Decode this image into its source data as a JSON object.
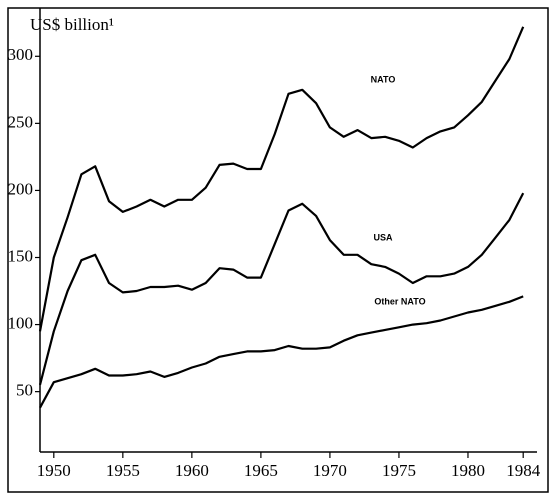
{
  "chart_data": {
    "type": "line",
    "y_label": "US$ billion¹",
    "x": [
      1949,
      1950,
      1951,
      1952,
      1953,
      1954,
      1955,
      1956,
      1957,
      1958,
      1959,
      1960,
      1961,
      1962,
      1963,
      1964,
      1965,
      1966,
      1967,
      1968,
      1969,
      1970,
      1971,
      1972,
      1973,
      1974,
      1975,
      1976,
      1977,
      1978,
      1979,
      1980,
      1981,
      1982,
      1983,
      1984
    ],
    "series": [
      {
        "name": "NATO",
        "color": "#000000",
        "values": [
          95,
          150,
          180,
          212,
          218,
          192,
          184,
          188,
          193,
          188,
          193,
          193,
          202,
          219,
          220,
          216,
          216,
          242,
          272,
          275,
          265,
          247,
          240,
          245,
          239,
          240,
          237,
          232,
          239,
          244,
          247,
          256,
          266,
          282,
          298,
          322
        ]
      },
      {
        "name": "USA",
        "color": "#000000",
        "values": [
          55,
          95,
          125,
          148,
          152,
          131,
          124,
          125,
          128,
          128,
          129,
          126,
          131,
          142,
          141,
          135,
          135,
          160,
          185,
          190,
          181,
          163,
          152,
          152,
          145,
          143,
          138,
          131,
          136,
          136,
          138,
          143,
          152,
          165,
          178,
          198
        ]
      },
      {
        "name": "Other NATO",
        "color": "#000000",
        "values": [
          38,
          57,
          60,
          63,
          67,
          62,
          62,
          63,
          65,
          61,
          64,
          68,
          71,
          76,
          78,
          80,
          80,
          81,
          84,
          82,
          82,
          83,
          88,
          92,
          94,
          96,
          98,
          100,
          101,
          103,
          106,
          109,
          111,
          114,
          117,
          121
        ]
      }
    ],
    "xlim": [
      1949,
      1985
    ],
    "xticks": [
      1950,
      1955,
      1960,
      1965,
      1970,
      1975,
      1980,
      1984
    ],
    "ylim": [
      5,
      336
    ],
    "yticks": [
      50,
      100,
      150,
      200,
      250,
      300
    ]
  }
}
